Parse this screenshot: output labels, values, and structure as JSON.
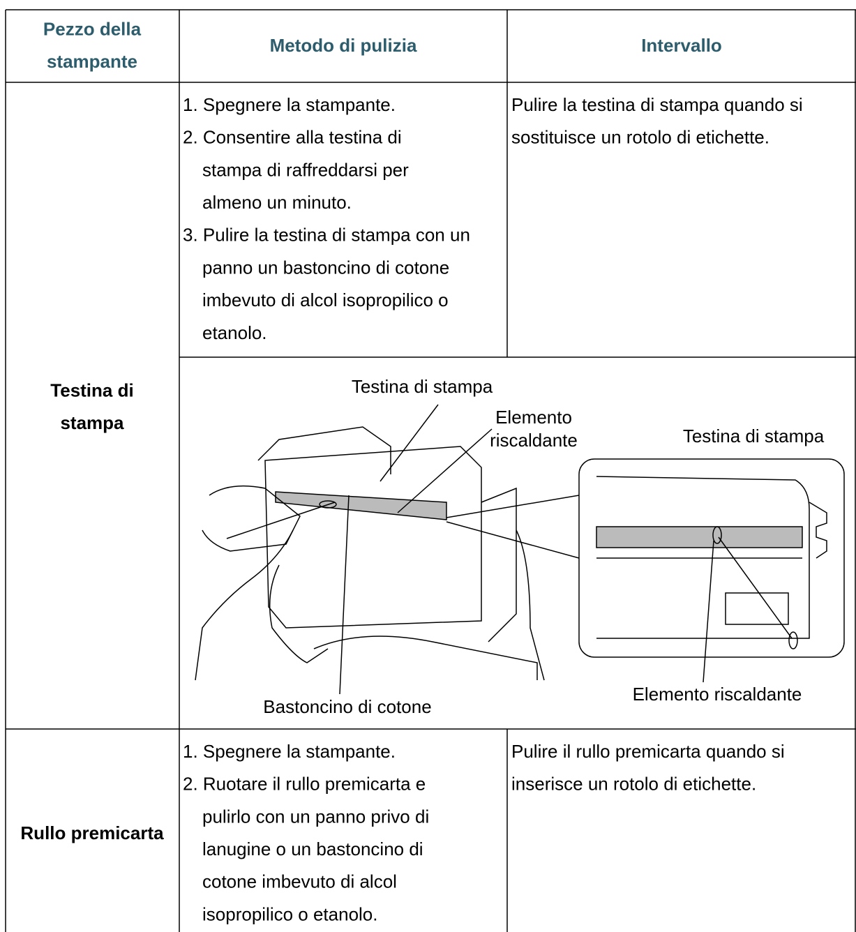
{
  "table": {
    "header": [
      [
        "Pezzo della",
        "stampante"
      ],
      [
        "Metodo di pulizia"
      ],
      [
        "Intervallo"
      ]
    ],
    "rows": [
      {
        "part": [
          "Testina di",
          "stampa"
        ],
        "method": [
          [
            "1. Spegnere la stampante."
          ],
          [
            "2. Consentire alla testina di",
            "stampa di raffreddarsi per",
            "almeno un minuto."
          ],
          [
            "3. Pulire la testina di stampa con un",
            "panno un bastoncino di cotone",
            "imbevuto di alcol isopropilico o",
            "etanolo."
          ]
        ],
        "interval": [
          "Pulire la testina di stampa quando si",
          "sostituisce un rotolo di etichette."
        ],
        "figure": {
          "head_label": "Testina di stampa",
          "element_label": [
            "Elemento",
            "riscaldante"
          ],
          "inset_title": "Testina di stampa",
          "inset_element_label": "Elemento riscaldante",
          "swab_label": "Bastoncino di cotone"
        }
      },
      {
        "part": [
          "Rullo premicarta"
        ],
        "method": [
          [
            "1. Spegnere la stampante."
          ],
          [
            "2. Ruotare il rullo premicarta e",
            "pulirlo con un panno privo di",
            "lanugine o un bastoncino di",
            "cotone imbevuto di alcol",
            "isopropilico o etanolo."
          ]
        ],
        "interval": [
          "Pulire il rullo premicarta quando si",
          "inserisce un rotolo di etichette."
        ]
      }
    ]
  }
}
